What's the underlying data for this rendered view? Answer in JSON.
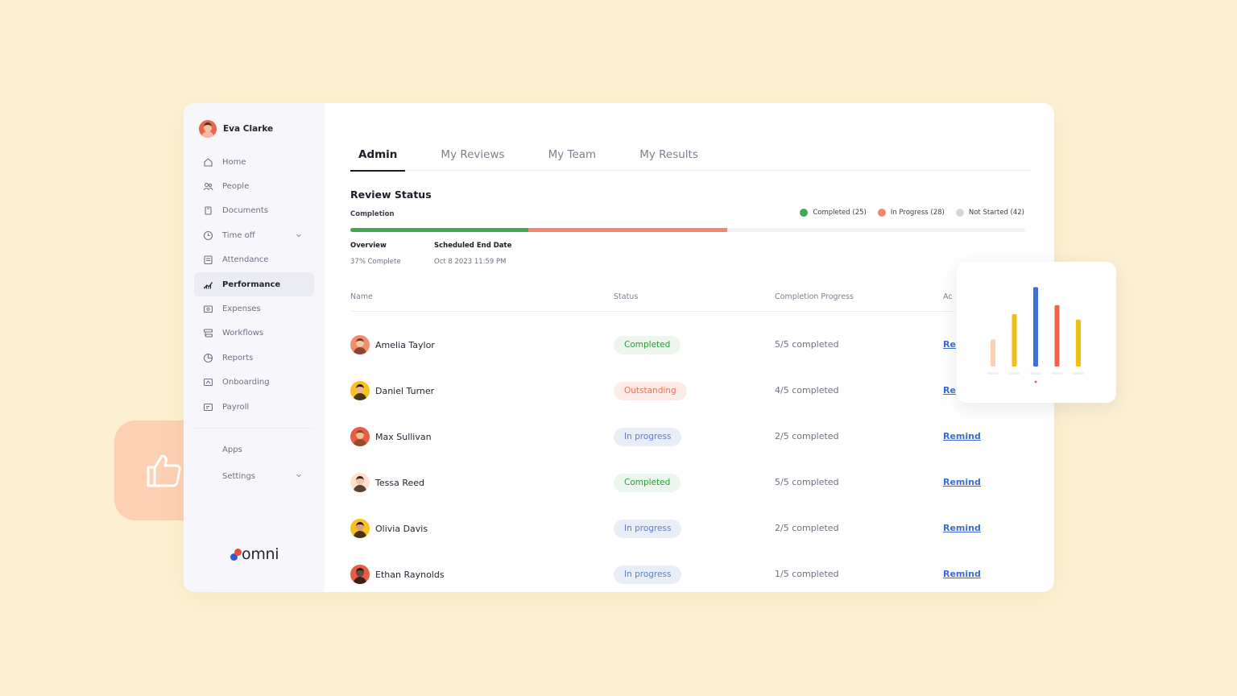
{
  "user": {
    "name": "Eva Clarke"
  },
  "sidebar": {
    "items": [
      {
        "label": "Home",
        "icon": "home-icon"
      },
      {
        "label": "People",
        "icon": "people-icon"
      },
      {
        "label": "Documents",
        "icon": "documents-icon"
      },
      {
        "label": "Time off",
        "icon": "clock-icon",
        "expandable": true
      },
      {
        "label": "Attendance",
        "icon": "attendance-icon"
      },
      {
        "label": "Performance",
        "icon": "performance-icon",
        "active": true
      },
      {
        "label": "Expenses",
        "icon": "expenses-icon"
      },
      {
        "label": "Workflows",
        "icon": "workflows-icon"
      },
      {
        "label": "Reports",
        "icon": "reports-icon"
      },
      {
        "label": "Onboarding",
        "icon": "onboarding-icon"
      },
      {
        "label": "Payroll",
        "icon": "payroll-icon"
      }
    ],
    "secondary": [
      {
        "label": "Apps"
      },
      {
        "label": "Settings",
        "expandable": true
      }
    ],
    "logo": "omni"
  },
  "tabs": [
    {
      "label": "Admin",
      "active": true
    },
    {
      "label": "My Reviews"
    },
    {
      "label": "My Team"
    },
    {
      "label": "My Results"
    }
  ],
  "review": {
    "title": "Review Status",
    "completion_label": "Completion",
    "legend": [
      {
        "label": "Completed (25)",
        "color": "#3faa4f"
      },
      {
        "label": "In Progress (28)",
        "color": "#f6836b"
      },
      {
        "label": "Not Started (42)",
        "color": "#d6d6da"
      }
    ],
    "progress": {
      "completed": 25,
      "in_progress": 28,
      "not_started": 42,
      "total": 95
    },
    "overview_label": "Overview",
    "overview_value": "37% Complete",
    "end_date_label": "Scheduled End Date",
    "end_date_value": "Oct 8 2023 11:59 PM"
  },
  "table": {
    "headers": [
      "Name",
      "Status",
      "Completion Progress",
      "Ac"
    ],
    "rows": [
      {
        "name": "Amelia Taylor",
        "status": "Completed",
        "status_type": "completed",
        "progress": "5/5 completed",
        "action": "Re",
        "avatar_bg": "#f28e6e",
        "skin": "#f3c9a8",
        "hair": "#7a3a20"
      },
      {
        "name": "Daniel Turner",
        "status": "Outstanding",
        "status_type": "outstanding",
        "progress": "4/5 completed",
        "action": "Re",
        "avatar_bg": "#f8c21a",
        "skin": "#e9b48d",
        "hair": "#2a2018"
      },
      {
        "name": "Max Sullivan",
        "status": "In progress",
        "status_type": "inprogress",
        "progress": "2/5 completed",
        "action": "Remind",
        "avatar_bg": "#e85b45",
        "skin": "#f0bf9a",
        "hair": "#8a4a25"
      },
      {
        "name": "Tessa Reed",
        "status": "Completed",
        "status_type": "completed",
        "progress": "5/5 completed",
        "action": "Remind",
        "avatar_bg": "#fde0d0",
        "skin": "#f1c6a2",
        "hair": "#3a2418"
      },
      {
        "name": "Olivia Davis",
        "status": "In progress",
        "status_type": "inprogress",
        "progress": "2/5 completed",
        "action": "Remind",
        "avatar_bg": "#f8c21a",
        "skin": "#d8a27a",
        "hair": "#2a1a12"
      },
      {
        "name": "Ethan Raynolds",
        "status": "In progress",
        "status_type": "inprogress",
        "progress": "1/5 completed",
        "action": "Remind",
        "avatar_bg": "#e85b45",
        "skin": "#6b4a36",
        "hair": "#1e1410"
      }
    ]
  },
  "chart_data": {
    "type": "bar",
    "categories": [
      "",
      "",
      "",
      "",
      ""
    ],
    "values": [
      30,
      58,
      88,
      68,
      52
    ],
    "colors": [
      "#fcd0b8",
      "#f6bd14",
      "#3d6fd6",
      "#f0624a",
      "#f6bd14"
    ],
    "ylim": [
      0,
      100
    ],
    "grid": false,
    "legend": "none"
  }
}
